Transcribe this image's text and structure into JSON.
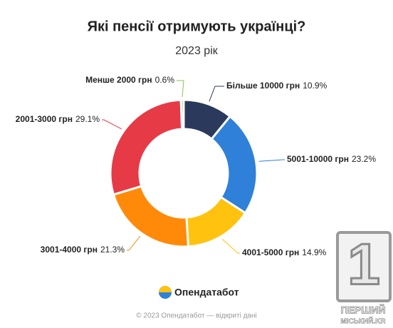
{
  "chart_data": {
    "type": "donut",
    "title": "Які пенсії отримують українці?",
    "subtitle": "2023 рік",
    "categories": [
      "Більше 10000 грн",
      "5001-10000 грн",
      "4001-5000 грн",
      "3001-4000 грн",
      "2001-3000 грн",
      "Менше 2000 грн"
    ],
    "values": [
      10.9,
      23.2,
      14.9,
      21.3,
      29.1,
      0.6
    ],
    "value_labels": [
      "10.9%",
      "23.2%",
      "14.9%",
      "21.3%",
      "29.1%",
      "0.6%"
    ],
    "colors": [
      "#2b3a5c",
      "#2f80d8",
      "#ffc20e",
      "#ff8a0a",
      "#e63b47",
      "#8bc34a"
    ]
  },
  "brand": "Опендатабот",
  "footer": "© 2023 Опендатабот — відкриті дані",
  "watermark": {
    "number": "1",
    "line1": "ПЕРШИЙ",
    "line2": "МІСЬКИЙ.KR"
  }
}
